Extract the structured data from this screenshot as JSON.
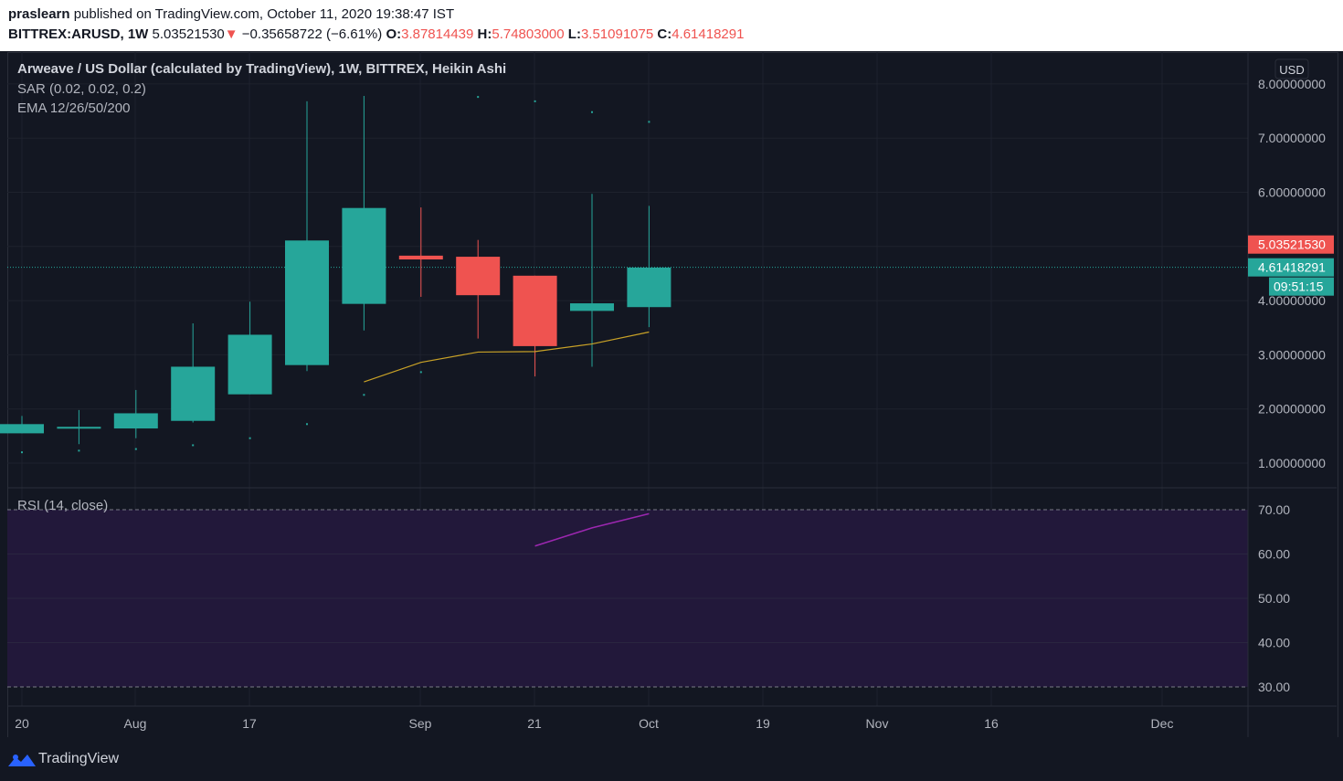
{
  "header": {
    "user": "praslearn",
    "published_text": "published on TradingView.com, October 11, 2020 19:38:47 IST",
    "symbol": "BITTREX:ARUSD, 1W",
    "last": "5.03521530",
    "change_arrow": "▼",
    "change": "−0.35658722 (−6.61%)",
    "o_label": "O:",
    "o_value": "3.87814439",
    "h_label": "H:",
    "h_value": "5.74803000",
    "l_label": "L:",
    "l_value": "3.51091075",
    "c_label": "C:",
    "c_value": "4.61418291"
  },
  "legend": {
    "title": "Arweave / US Dollar (calculated by TradingView), 1W, BITTREX, Heikin Ashi",
    "sar": "SAR (0.02, 0.02, 0.2)",
    "ema": "EMA 12/26/50/200",
    "rsi": "RSI (14, close)"
  },
  "currency_button": "USD",
  "price_tags": {
    "last_price": "5.03521530",
    "ha_close": "4.61418291",
    "countdown": "09:51:15"
  },
  "footer": {
    "brand": "TradingView"
  },
  "colors": {
    "background": "#131722",
    "up": "#26a69a",
    "down": "#ef5350",
    "ema": "#c9a227",
    "rsi": "#9c27b0",
    "rsi_band": "#22183a",
    "grid": "#1e222d"
  },
  "chart_data": [
    {
      "type": "candlestick",
      "title": "Arweave / US Dollar (calculated by TradingView), 1W, BITTREX, Heikin Ashi",
      "y_axis": {
        "label": "USD",
        "ticks": [
          "1.00000000",
          "2.00000000",
          "3.00000000",
          "4.00000000",
          "5.00000000",
          "6.00000000",
          "7.00000000",
          "8.00000000"
        ],
        "range": [
          0.5,
          8.3
        ]
      },
      "x_axis": {
        "ticks": [
          "20",
          "Aug",
          "17",
          "Sep",
          "21",
          "Oct",
          "19",
          "Nov",
          "16",
          "Dec"
        ]
      },
      "candles": [
        {
          "date": "2020-07-20",
          "open": 1.55,
          "high": 1.87,
          "low": 1.55,
          "close": 1.72
        },
        {
          "date": "2020-07-27",
          "open": 1.66,
          "high": 1.98,
          "low": 1.35,
          "close": 1.67
        },
        {
          "date": "2020-08-03",
          "open": 1.64,
          "high": 2.35,
          "low": 1.46,
          "close": 1.92
        },
        {
          "date": "2020-08-10",
          "open": 1.78,
          "high": 3.58,
          "low": 1.75,
          "close": 2.78
        },
        {
          "date": "2020-08-17",
          "open": 2.27,
          "high": 3.98,
          "low": 2.27,
          "close": 3.37
        },
        {
          "date": "2020-08-24",
          "open": 2.81,
          "high": 7.68,
          "low": 2.7,
          "close": 5.11
        },
        {
          "date": "2020-08-31",
          "open": 3.94,
          "high": 7.78,
          "low": 3.45,
          "close": 5.71
        },
        {
          "date": "2020-09-07",
          "open": 4.83,
          "high": 5.72,
          "low": 4.07,
          "close": 4.76
        },
        {
          "date": "2020-09-14",
          "open": 4.81,
          "high": 5.12,
          "low": 3.3,
          "close": 4.1
        },
        {
          "date": "2020-09-21",
          "open": 4.46,
          "high": 4.46,
          "low": 2.6,
          "close": 3.16
        },
        {
          "date": "2020-09-28",
          "open": 3.81,
          "high": 5.97,
          "low": 2.78,
          "close": 3.95
        },
        {
          "date": "2020-10-05",
          "open": 3.88,
          "high": 5.75,
          "low": 3.51,
          "close": 4.61
        }
      ],
      "sar": [
        1.2,
        1.23,
        1.26,
        1.33,
        1.46,
        1.72,
        2.26,
        2.68,
        7.76,
        7.68,
        7.48,
        7.3
      ],
      "ema": [
        {
          "date": "2020-08-31",
          "value": 2.5
        },
        {
          "date": "2020-09-07",
          "value": 2.86
        },
        {
          "date": "2020-09-14",
          "value": 3.05
        },
        {
          "date": "2020-09-21",
          "value": 3.06
        },
        {
          "date": "2020-09-28",
          "value": 3.2
        },
        {
          "date": "2020-10-05",
          "value": 3.42
        }
      ],
      "last_price": 5.0352153,
      "ha_close": 4.61418291
    },
    {
      "type": "line",
      "title": "RSI (14, close)",
      "y_axis": {
        "ticks": [
          "30.00",
          "40.00",
          "50.00",
          "60.00",
          "70.00"
        ],
        "range": [
          26,
          73.5
        ]
      },
      "band": [
        30,
        70
      ],
      "series": [
        {
          "date": "2020-09-21",
          "value": 61.8
        },
        {
          "date": "2020-09-28",
          "value": 65.9
        },
        {
          "date": "2020-10-05",
          "value": 69.1
        }
      ]
    }
  ]
}
